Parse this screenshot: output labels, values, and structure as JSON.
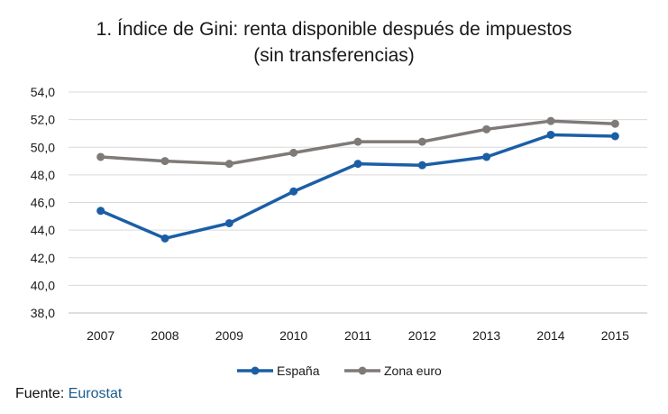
{
  "chart_data": {
    "type": "line",
    "title": "1. Índice de Gini: renta disponible después de impuestos",
    "subtitle": "(sin transferencias)",
    "xlabel": "",
    "ylabel": "",
    "x": [
      "2007",
      "2008",
      "2009",
      "2010",
      "2011",
      "2012",
      "2013",
      "2014",
      "2015"
    ],
    "y_ticks": [
      "38,0",
      "40,0",
      "42,0",
      "44,0",
      "46,0",
      "48,0",
      "50,0",
      "52,0",
      "54,0"
    ],
    "ylim": [
      38,
      54
    ],
    "grid": "horizontal",
    "legend_position": "bottom",
    "series": [
      {
        "name": "España",
        "color": "#1b5ea6",
        "values": [
          45.4,
          43.4,
          44.5,
          46.8,
          48.8,
          48.7,
          49.3,
          50.9,
          50.8
        ]
      },
      {
        "name": "Zona euro",
        "color": "#7f7a78",
        "values": [
          49.3,
          49.0,
          48.8,
          49.6,
          50.4,
          50.4,
          51.3,
          51.9,
          51.7
        ]
      }
    ]
  },
  "source": {
    "label": "Fuente:",
    "link_text": "Eurostat"
  }
}
